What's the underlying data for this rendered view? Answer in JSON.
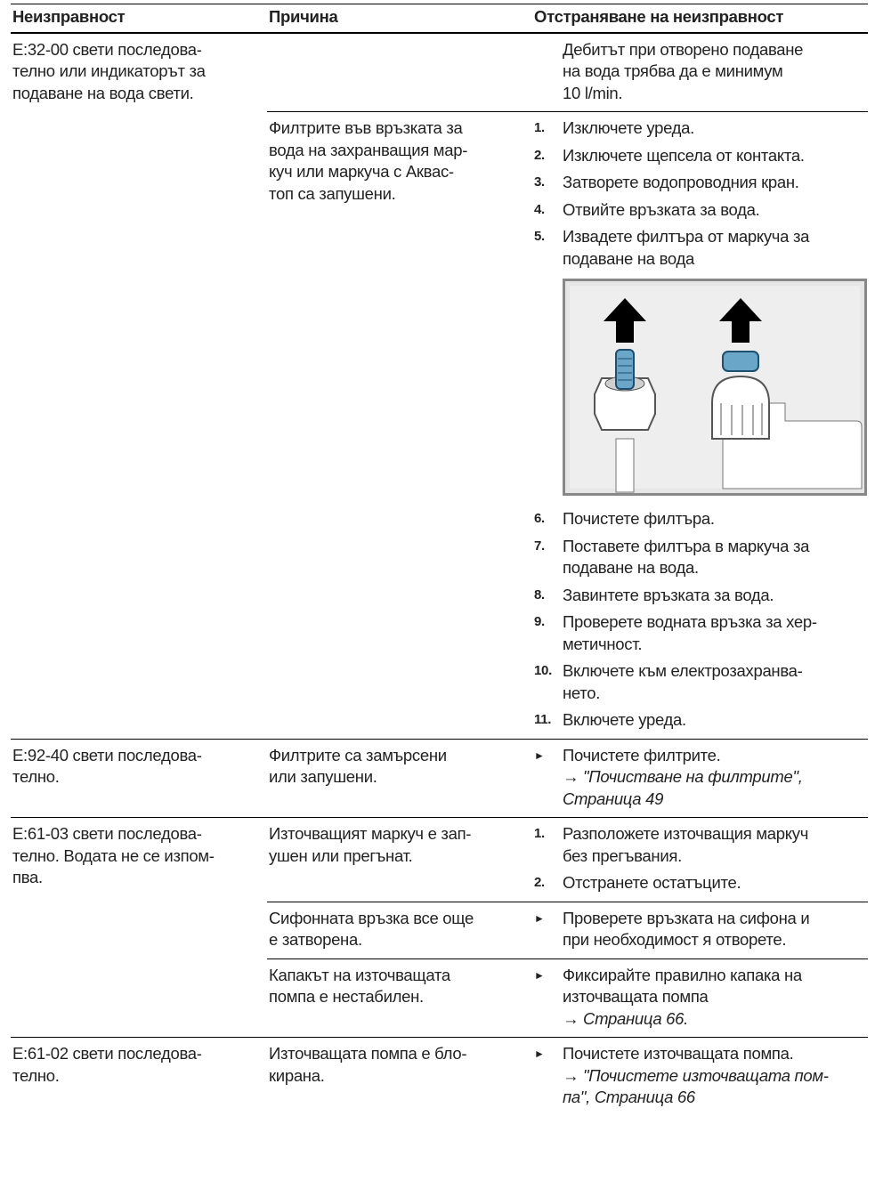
{
  "header": [
    "Неизправност",
    "Причина",
    "Отстраняване на неизправност"
  ],
  "rows": [
    {
      "fault": [
        "E:32-00 свети последова-",
        "телно или индикаторът за",
        "подаване на вода свети."
      ],
      "causes": [
        {
          "cause": [],
          "remedy": [
            {
              "lines": [
                "Дебитът при отворено подаване",
                "на вода трябва да е минимум",
                "10 l/min."
              ]
            }
          ]
        },
        {
          "cause": [
            "Филтрите във връзката за",
            "вода на захранващия мар-",
            "куч или маркуча с Аквас-",
            "топ са запушени."
          ],
          "remedy": [
            {
              "num": "1.",
              "lines": [
                "Изключете уреда."
              ]
            },
            {
              "num": "2.",
              "lines": [
                "Изключете щепсела от контакта."
              ]
            },
            {
              "num": "3.",
              "lines": [
                "Затворете водопроводния кран."
              ]
            },
            {
              "num": "4.",
              "lines": [
                "Отвийте връзката за вода."
              ]
            },
            {
              "num": "5.",
              "lines": [
                "Извадете филтъра от маркуча за",
                "подаване на вода"
              ]
            },
            {
              "num": "6.",
              "lines": [
                "Почистете филтъра."
              ]
            },
            {
              "num": "7.",
              "lines": [
                "Поставете филтъра в маркуча за",
                "подаване на вода."
              ]
            },
            {
              "num": "8.",
              "lines": [
                "Завинтете връзката за вода."
              ]
            },
            {
              "num": "9.",
              "lines": [
                "Проверете водната връзка за хер-",
                "метичност."
              ]
            },
            {
              "num": "10.",
              "lines": [
                "Включете към електрозахранва-",
                "нето."
              ]
            },
            {
              "num": "11.",
              "lines": [
                "Включете уреда."
              ]
            }
          ]
        }
      ]
    },
    {
      "fault": [
        "E:92-40 свети последова-",
        "телно."
      ],
      "causes": [
        {
          "cause": [
            "Филтрите са замърсени",
            "или запушени."
          ],
          "remedy": [
            {
              "bullet": true,
              "lines": [
                "Почистете филтрите."
              ],
              "link": [
                "→ \"Почистване на филтрите\",",
                "Страница 49"
              ]
            }
          ]
        }
      ]
    },
    {
      "fault": [
        "E:61-03 свети последова-",
        "телно. Водата не се изпом-",
        "пва."
      ],
      "causes": [
        {
          "cause": [
            "Източващият маркуч е зап-",
            "ушен или прегънат."
          ],
          "remedy": [
            {
              "num": "1.",
              "lines": [
                "Разположете източващия маркуч",
                "без прегъвания."
              ]
            },
            {
              "num": "2.",
              "lines": [
                "Отстранете остатъците."
              ]
            }
          ]
        },
        {
          "cause": [
            "Сифонната връзка все още",
            "е затворена."
          ],
          "remedy": [
            {
              "bullet": true,
              "lines": [
                "Проверете връзката на сифона и",
                "при необходимост я отворете."
              ]
            }
          ]
        },
        {
          "cause": [
            "Капакът на източващата",
            "помпа е нестабилен."
          ],
          "remedy": [
            {
              "bullet": true,
              "lines": [
                "Фиксирайте правилно капака на",
                "източващата помпа"
              ],
              "link": [
                "→ Страница 66."
              ]
            }
          ]
        }
      ]
    },
    {
      "fault": [
        "E:61-02 свети последова-",
        "телно."
      ],
      "causes": [
        {
          "cause": [
            "Източващата помпа е бло-",
            "кирана."
          ],
          "remedy": [
            {
              "bullet": true,
              "lines": [
                "Почистете източващата помпа."
              ],
              "link": [
                "→ \"Почистете източващата пом-",
                "па\", Страница 66"
              ]
            }
          ]
        }
      ]
    }
  ]
}
